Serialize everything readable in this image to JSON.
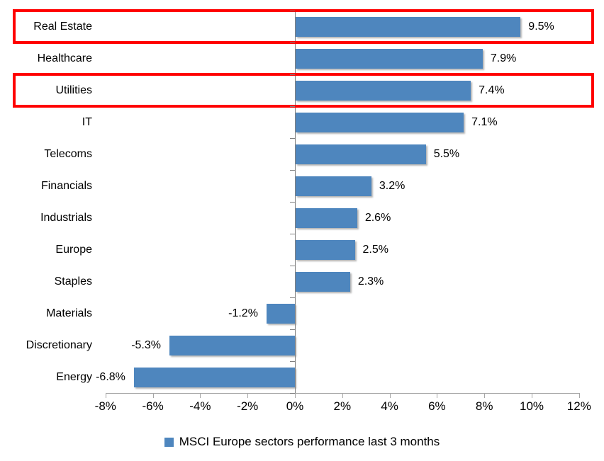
{
  "chart_data": {
    "type": "bar",
    "orientation": "horizontal",
    "title": "",
    "categories": [
      "Real Estate",
      "Healthcare",
      "Utilities",
      "IT",
      "Telecoms",
      "Financials",
      "Industrials",
      "Europe",
      "Staples",
      "Materials",
      "Discretionary",
      "Energy"
    ],
    "values": [
      9.5,
      7.9,
      7.4,
      7.1,
      5.5,
      3.2,
      2.6,
      2.5,
      2.3,
      -1.2,
      -5.3,
      -6.8
    ],
    "value_labels": [
      "9.5%",
      "7.9%",
      "7.4%",
      "7.1%",
      "5.5%",
      "3.2%",
      "2.6%",
      "2.5%",
      "2.3%",
      "-1.2%",
      "-5.3%",
      "-6.8%"
    ],
    "x_tick_values": [
      -8,
      -6,
      -4,
      -2,
      0,
      2,
      4,
      6,
      8,
      10,
      12
    ],
    "x_tick_labels": [
      "-8%",
      "-6%",
      "-4%",
      "-2%",
      "0%",
      "2%",
      "4%",
      "6%",
      "8%",
      "10%",
      "12%"
    ],
    "xlim": [
      -8,
      12
    ],
    "grid": false,
    "legend_position": "bottom-center",
    "legend": "MSCI Europe sectors performance last 3 months",
    "bar_color": "#4E86BE",
    "axis_color": "#808080",
    "x_axis_color": "#A6A6A6",
    "highlight_color": "#FF0000",
    "highlighted_categories": [
      "Real Estate",
      "Utilities"
    ]
  }
}
